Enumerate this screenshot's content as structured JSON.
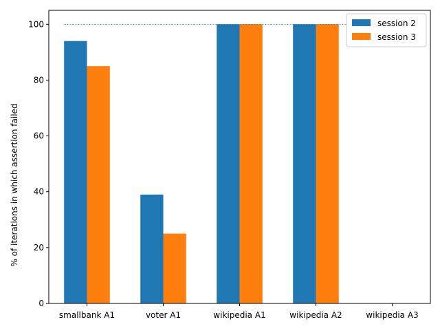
{
  "chart_data": {
    "type": "bar",
    "title": "",
    "xlabel": "",
    "ylabel": "% of iterations in which assertion failed",
    "categories": [
      "smallbank A1",
      "voter A1",
      "wikipedia A1",
      "wikipedia A2",
      "wikipedia A3"
    ],
    "series": [
      {
        "name": "session 2",
        "color": "#1f77b4",
        "values": [
          94,
          39,
          100,
          100,
          0
        ]
      },
      {
        "name": "session 3",
        "color": "#ff7f0e",
        "values": [
          85,
          25,
          100,
          100,
          0
        ]
      }
    ],
    "ylim": [
      0,
      105
    ],
    "yticks": [
      0,
      20,
      40,
      60,
      80,
      100
    ],
    "reference_line": {
      "y": 100,
      "style": "dashed",
      "color": "#1f77b4"
    },
    "grid": false,
    "legend": {
      "position": "top-right"
    }
  }
}
